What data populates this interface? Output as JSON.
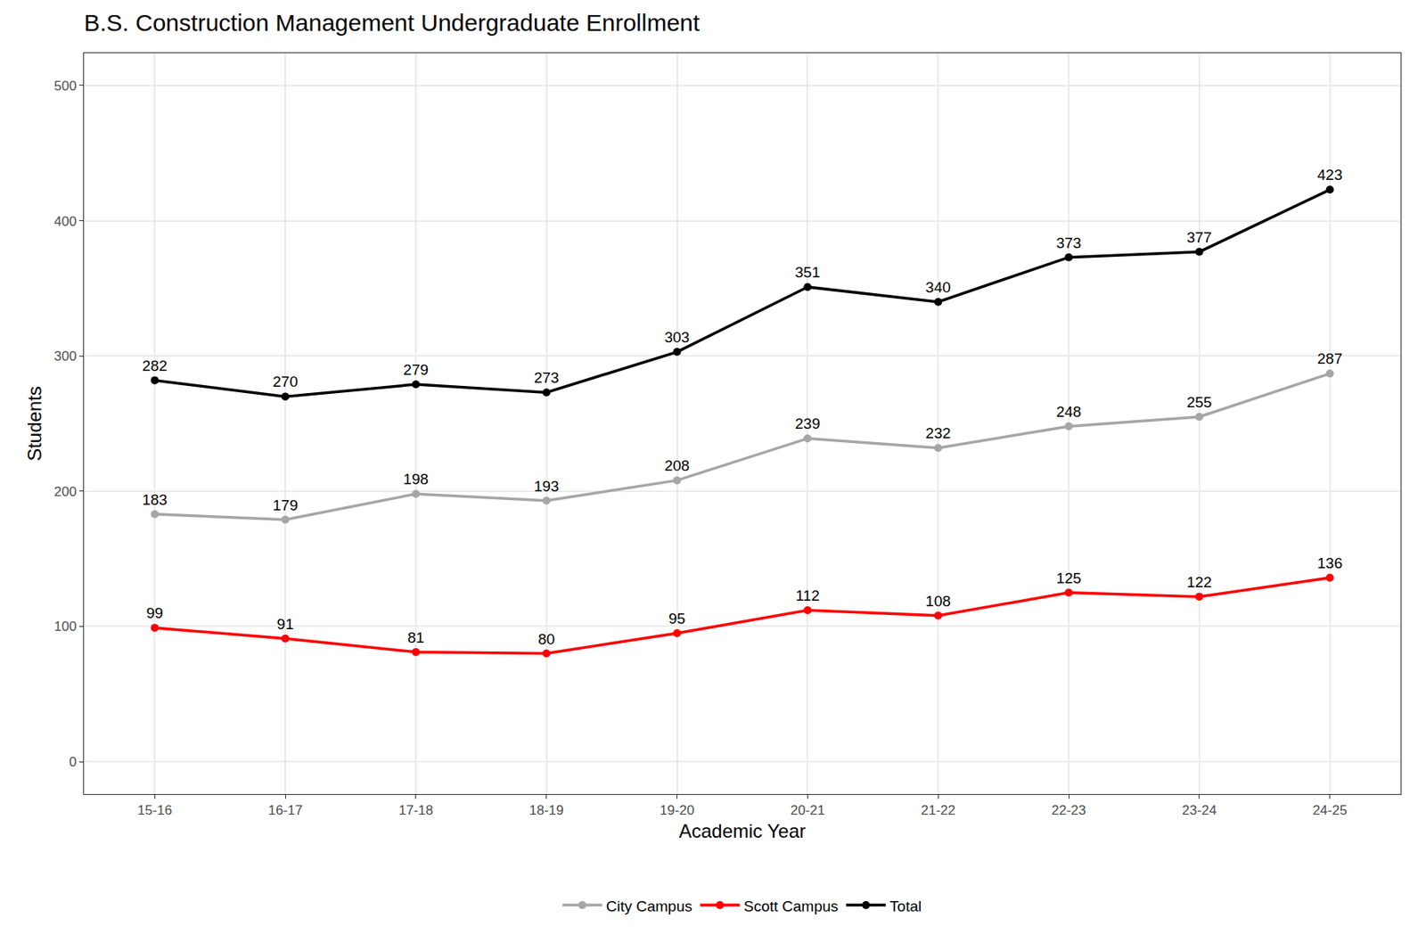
{
  "chart_data": {
    "type": "line",
    "title": "B.S. Construction Management Undergraduate Enrollment",
    "x_label": "Academic Year",
    "y_label": "Students",
    "categories": [
      "15-16",
      "16-17",
      "17-18",
      "18-19",
      "19-20",
      "20-21",
      "21-22",
      "22-23",
      "23-24",
      "24-25"
    ],
    "series": [
      {
        "name": "City Campus",
        "color": "#a6a6a6",
        "values": [
          183,
          179,
          198,
          193,
          208,
          239,
          232,
          248,
          255,
          287
        ]
      },
      {
        "name": "Scott Campus",
        "color": "#ff0000",
        "values": [
          99,
          91,
          81,
          80,
          95,
          112,
          108,
          125,
          122,
          136
        ]
      },
      {
        "name": "Total",
        "color": "#000000",
        "values": [
          282,
          270,
          279,
          273,
          303,
          351,
          340,
          373,
          377,
          423
        ]
      }
    ],
    "ylim": [
      -24,
      524
    ],
    "yticks": [
      0,
      100,
      200,
      300,
      400,
      500
    ],
    "grid": true,
    "legend": "bottom",
    "data_labels": true,
    "marker": "circle",
    "line_style": "solid"
  }
}
